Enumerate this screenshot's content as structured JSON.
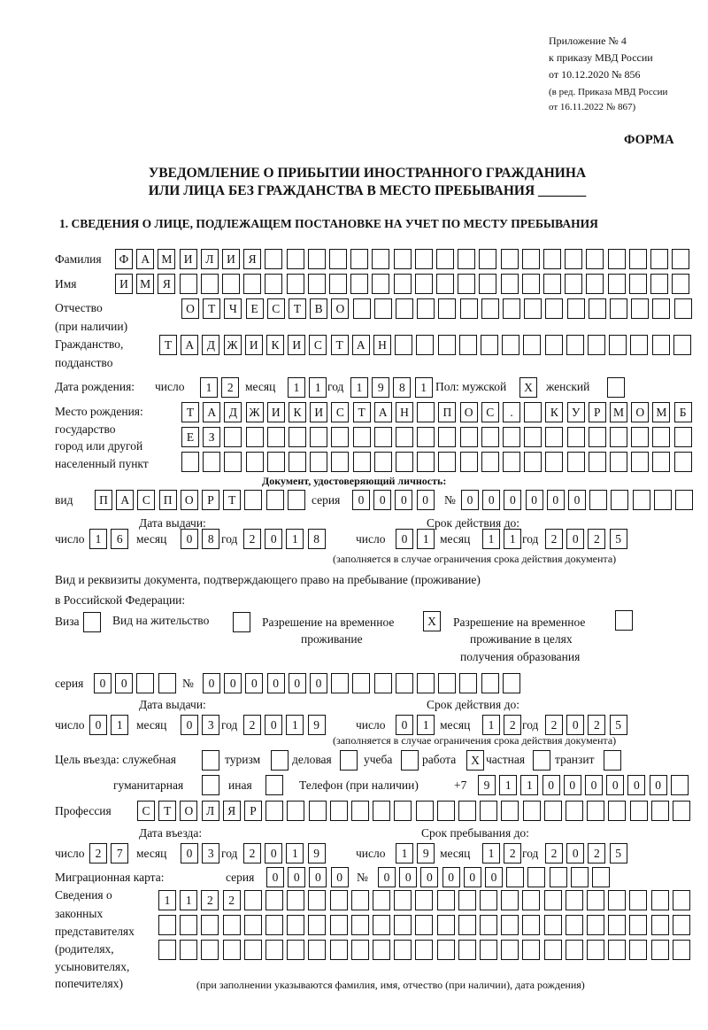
{
  "header": {
    "appendix": "Приложение № 4",
    "order": "к приказу МВД России",
    "date": "от 10.12.2020 № 856",
    "edition1": "(в ред. Приказа МВД России",
    "edition2": "от 16.11.2022 № 867)",
    "form_label": "ФОРМА",
    "title1": "УВЕДОМЛЕНИЕ О ПРИБЫТИИ ИНОСТРАННОГО ГРАЖДАНИНА",
    "title2": "ИЛИ ЛИЦА БЕЗ ГРАЖДАНСТВА В МЕСТО ПРЕБЫВАНИЯ _______",
    "section1": "1. СВЕДЕНИЯ О ЛИЦЕ, ПОДЛЕЖАЩЕМ ПОСТАНОВКЕ НА УЧЕТ ПО МЕСТУ ПРЕБЫВАНИЯ"
  },
  "labels": {
    "surname": "Фамилия",
    "name": "Имя",
    "patronymic1": "Отчество",
    "patronymic2": "(при наличии)",
    "citizenship1": "Гражданство,",
    "citizenship2": "подданство",
    "birth_date": "Дата рождения:",
    "day": "число",
    "month": "месяц",
    "year": "год",
    "sex": "Пол: мужской",
    "female": "женский",
    "birthplace1": "Место рождения:",
    "birthplace2": "государство",
    "birthplace3": "город или другой",
    "birthplace4": "населенный пункт",
    "id_doc": "Документ, удостоверяющий личность:",
    "kind": "вид",
    "series": "серия",
    "number": "№",
    "issue_date": "Дата выдачи:",
    "valid_until": "Срок действия до:",
    "validity_note": "(заполняется в случае ограничения срока действия документа)",
    "right_doc1": "Вид и реквизиты документа, подтверждающего право на пребывание (проживание)",
    "right_doc2": "в Российской Федерации:",
    "visa": "Виза",
    "residence": "Вид на жительство",
    "temp1": "Разрешение на временное",
    "temp2": "проживание",
    "edu1": "Разрешение на временное",
    "edu2": "проживание в целях",
    "edu3": "получения образования",
    "purpose": "Цель въезда: служебная",
    "tourism": "туризм",
    "business": "деловая",
    "study": "учеба",
    "work": "работа",
    "private": "частная",
    "transit": "транзит",
    "humanitarian": "гуманитарная",
    "other": "иная",
    "phone": "Телефон (при наличии)",
    "phone_prefix": "+7",
    "profession": "Профессия",
    "entry_date": "Дата въезда:",
    "stay_until": "Срок пребывания до:",
    "migration_card": "Миграционная карта:",
    "reps1": "Сведения о",
    "reps2": "законных",
    "reps3": "представителях",
    "reps4": "(родителях,",
    "reps5": "усыновителях,",
    "reps6": "попечителях)",
    "reps_note": "(при заполнении указываются фамилия, имя, отчество (при наличии), дата рождения)"
  },
  "person": {
    "surname": [
      "Ф",
      "А",
      "М",
      "И",
      "Л",
      "И",
      "Я"
    ],
    "name": [
      "И",
      "М",
      "Я"
    ],
    "patronymic": [
      "О",
      "Т",
      "Ч",
      "Е",
      "С",
      "Т",
      "В",
      "О"
    ],
    "citizenship": [
      "Т",
      "А",
      "Д",
      "Ж",
      "И",
      "К",
      "И",
      "С",
      "Т",
      "А",
      "Н"
    ],
    "birth_day": [
      "1",
      "2"
    ],
    "birth_month": [
      "1",
      "1"
    ],
    "birth_year": [
      "1",
      "9",
      "8",
      "1"
    ],
    "sex_male": "X",
    "sex_female": "",
    "birthplace_line1": [
      "Т",
      "А",
      "Д",
      "Ж",
      "И",
      "К",
      "И",
      "С",
      "Т",
      "А",
      "Н",
      "",
      "П",
      "О",
      "С",
      ".",
      "",
      "К",
      "У",
      "Р",
      "М",
      "О",
      "М",
      "Б"
    ],
    "birthplace_line2": [
      "Е",
      "З"
    ],
    "birthplace_line3": []
  },
  "id_document": {
    "kind": [
      "П",
      "А",
      "С",
      "П",
      "О",
      "Р",
      "Т"
    ],
    "series": [
      "0",
      "0",
      "0",
      "0"
    ],
    "number": [
      "0",
      "0",
      "0",
      "0",
      "0",
      "0"
    ],
    "issue_day": [
      "1",
      "6"
    ],
    "issue_month": [
      "0",
      "8"
    ],
    "issue_year": [
      "2",
      "0",
      "1",
      "8"
    ],
    "valid_day": [
      "0",
      "1"
    ],
    "valid_month": [
      "1",
      "1"
    ],
    "valid_year": [
      "2",
      "0",
      "2",
      "5"
    ]
  },
  "right_document": {
    "visa": "",
    "residence_permit": "",
    "temporary_residence": "X",
    "temporary_residence_education": "",
    "series": [
      "0",
      "0"
    ],
    "number": [
      "0",
      "0",
      "0",
      "0",
      "0",
      "0"
    ],
    "issue_day": [
      "0",
      "1"
    ],
    "issue_month": [
      "0",
      "3"
    ],
    "issue_year": [
      "2",
      "0",
      "1",
      "9"
    ],
    "valid_day": [
      "0",
      "1"
    ],
    "valid_month": [
      "1",
      "2"
    ],
    "valid_year": [
      "2",
      "0",
      "2",
      "5"
    ]
  },
  "purpose": {
    "official": "",
    "tourism": "",
    "business": "",
    "study": "",
    "work": "X",
    "private": "",
    "transit": "",
    "humanitarian": "",
    "other": ""
  },
  "phone": [
    "9",
    "1",
    "1",
    "0",
    "0",
    "0",
    "0",
    "0",
    "0"
  ],
  "profession": [
    "С",
    "Т",
    "О",
    "Л",
    "Я",
    "Р"
  ],
  "entry": {
    "entry_day": [
      "2",
      "7"
    ],
    "entry_month": [
      "0",
      "3"
    ],
    "entry_year": [
      "2",
      "0",
      "1",
      "9"
    ],
    "stay_day": [
      "1",
      "9"
    ],
    "stay_month": [
      "1",
      "2"
    ],
    "stay_year": [
      "2",
      "0",
      "2",
      "5"
    ]
  },
  "migration_card": {
    "series": [
      "0",
      "0",
      "0",
      "0"
    ],
    "number": [
      "0",
      "0",
      "0",
      "0",
      "0",
      "0"
    ]
  },
  "representatives": {
    "line1": [
      "1",
      "1",
      "2",
      "2"
    ],
    "line2": [],
    "line3": []
  }
}
